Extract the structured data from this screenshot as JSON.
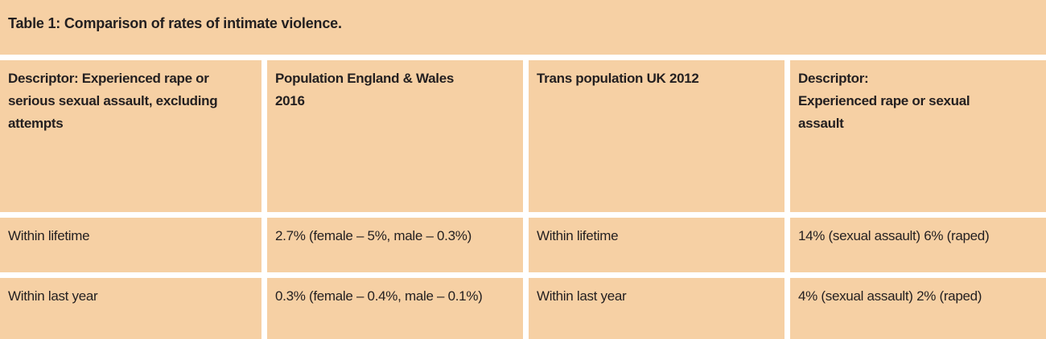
{
  "colors": {
    "cell_background": "#f6d0a4",
    "gutter": "#ffffff",
    "text": "#231f20"
  },
  "title": "Table 1: Comparison of rates of intimate violence.",
  "table": {
    "headers": [
      "Descriptor: Experienced rape or\nserious sexual assault, excluding\nattempts",
      "Population England & Wales\n2016",
      "Trans population UK 2012",
      "Descriptor:\nExperienced rape or sexual\nassault"
    ],
    "rows": [
      [
        "Within lifetime",
        "2.7% (female – 5%, male – 0.3%)",
        "Within lifetime",
        "14% (sexual assault) 6% (raped)"
      ],
      [
        "Within last year",
        "0.3% (female – 0.4%, male – 0.1%)",
        "Within last year",
        "4% (sexual assault) 2% (raped)"
      ]
    ]
  }
}
